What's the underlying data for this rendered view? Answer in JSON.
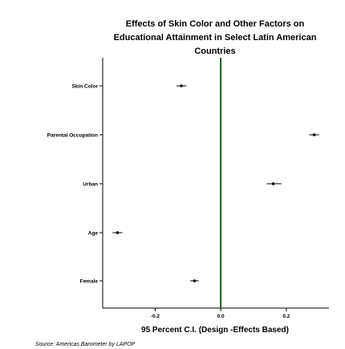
{
  "chart_data": {
    "type": "scatter",
    "title_lines": [
      "Effects of Skin Color and Other Factors on",
      "Educational Attainment in Select Latin American",
      "Countries"
    ],
    "xlabel": "95 Percent C.I. (Design -Effects Based)",
    "ylabel": "",
    "xlim": [
      -0.36,
      0.33
    ],
    "x_ticks": [
      {
        "value": -0.2,
        "label": "-0.2"
      },
      {
        "value": 0.0,
        "label": "0.0"
      },
      {
        "value": 0.2,
        "label": "0.2"
      }
    ],
    "reference_line": {
      "x": 0.0,
      "color": "#1a5c1a"
    },
    "categories": [
      "Skin Color",
      "Parental Occupation",
      "Urban",
      "Age",
      "Female"
    ],
    "series": [
      {
        "points": [
          {
            "category": "Skin Color",
            "estimate": -0.12,
            "ci_low": -0.135,
            "ci_high": -0.105
          },
          {
            "category": "Parental Occupation",
            "estimate": 0.285,
            "ci_low": 0.27,
            "ci_high": 0.3
          },
          {
            "category": "Urban",
            "estimate": 0.16,
            "ci_low": 0.14,
            "ci_high": 0.185
          },
          {
            "category": "Age",
            "estimate": -0.315,
            "ci_low": -0.33,
            "ci_high": -0.3
          },
          {
            "category": "Female",
            "estimate": -0.08,
            "ci_low": -0.093,
            "ci_high": -0.067
          }
        ]
      }
    ],
    "grid": false,
    "marker_color": "#000000",
    "line_color": "#000000"
  },
  "source_text": "Source: Americas Barometer by LAPOP"
}
